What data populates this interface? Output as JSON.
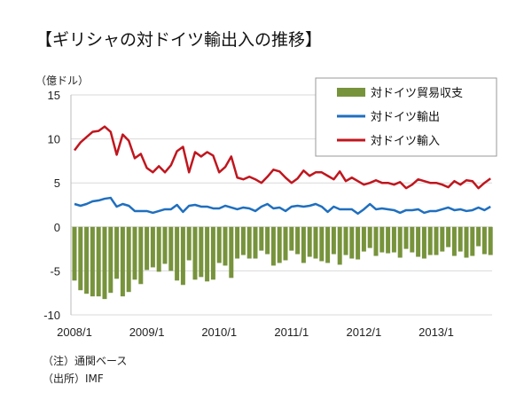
{
  "title": "【ギリシャの対ドイツ輸出入の推移】",
  "unit": "（億ドル）",
  "notes": [
    "（注）通関ベース",
    "（出所）IMF"
  ],
  "chart_data": {
    "type": "bar+line",
    "title": "【ギリシャの対ドイツ輸出入の推移】",
    "ylabel": "（億ドル）",
    "ylim": [
      -10,
      15
    ],
    "yticks": [
      15,
      10,
      5,
      0,
      -5,
      -10
    ],
    "xstart": "2008/1",
    "xticks": [
      {
        "label": "2008/1",
        "index": 0
      },
      {
        "label": "2009/1",
        "index": 12
      },
      {
        "label": "2010/1",
        "index": 24
      },
      {
        "label": "2011/1",
        "index": 36
      },
      {
        "label": "2012/1",
        "index": 48
      },
      {
        "label": "2013/1",
        "index": 60
      }
    ],
    "legend_position": "top-right",
    "grid": true,
    "series": [
      {
        "name": "対ドイツ貿易収支",
        "type": "bar",
        "color": "#77933c",
        "values": [
          -6.1,
          -7.2,
          -7.6,
          -7.9,
          -7.9,
          -8.2,
          -7.5,
          -5.9,
          -7.9,
          -7.4,
          -6.0,
          -6.5,
          -4.9,
          -4.6,
          -5.1,
          -4.2,
          -5.0,
          -6.1,
          -6.6,
          -3.8,
          -6.0,
          -5.7,
          -6.2,
          -6.0,
          -4.1,
          -4.4,
          -5.8,
          -3.6,
          -3.2,
          -3.6,
          -3.6,
          -2.7,
          -3.1,
          -4.4,
          -4.1,
          -3.8,
          -2.7,
          -3.1,
          -4.1,
          -3.4,
          -3.6,
          -3.9,
          -4.1,
          -3.1,
          -4.3,
          -3.2,
          -3.6,
          -3.7,
          -2.8,
          -2.4,
          -3.3,
          -2.9,
          -3.0,
          -2.9,
          -3.5,
          -2.5,
          -2.9,
          -3.4,
          -3.6,
          -3.2,
          -3.2,
          -2.8,
          -2.3,
          -3.3,
          -2.8,
          -3.5,
          -3.3,
          -2.2,
          -3.1,
          -3.2
        ]
      },
      {
        "name": "対ドイツ輸出",
        "type": "line",
        "color": "#1f6fbf",
        "values": [
          2.6,
          2.4,
          2.6,
          2.9,
          3.0,
          3.2,
          3.3,
          2.3,
          2.6,
          2.4,
          1.8,
          1.8,
          1.8,
          1.6,
          1.8,
          2.0,
          2.0,
          2.5,
          1.7,
          2.4,
          2.5,
          2.3,
          2.3,
          2.1,
          2.1,
          2.4,
          2.2,
          2.0,
          2.2,
          2.1,
          1.8,
          2.3,
          2.6,
          2.1,
          2.2,
          1.8,
          2.3,
          2.4,
          2.3,
          2.4,
          2.6,
          2.3,
          1.7,
          2.3,
          2.0,
          2.0,
          2.0,
          1.5,
          2.0,
          2.6,
          2.0,
          2.1,
          2.0,
          1.9,
          1.6,
          1.9,
          1.9,
          2.0,
          1.6,
          1.8,
          1.8,
          2.0,
          2.2,
          1.9,
          2.0,
          1.8,
          1.9,
          2.2,
          1.9,
          2.3
        ]
      },
      {
        "name": "対ドイツ輸入",
        "type": "line",
        "color": "#c0161e",
        "values": [
          8.7,
          9.6,
          10.2,
          10.8,
          10.9,
          11.4,
          10.8,
          8.2,
          10.5,
          9.8,
          7.8,
          8.3,
          6.7,
          6.2,
          6.9,
          6.2,
          7.0,
          8.6,
          9.1,
          6.2,
          8.5,
          8.0,
          8.5,
          8.1,
          6.2,
          6.8,
          8.0,
          5.6,
          5.4,
          5.7,
          5.4,
          5.0,
          5.7,
          6.5,
          6.3,
          5.6,
          5.0,
          5.5,
          6.4,
          5.8,
          6.2,
          6.2,
          5.8,
          5.4,
          6.3,
          5.2,
          5.6,
          5.2,
          4.8,
          5.0,
          5.3,
          5.0,
          5.0,
          4.8,
          5.1,
          4.4,
          4.8,
          5.4,
          5.2,
          5.0,
          5.0,
          4.8,
          4.5,
          5.2,
          4.8,
          5.3,
          5.2,
          4.4,
          5.0,
          5.5
        ]
      }
    ]
  }
}
